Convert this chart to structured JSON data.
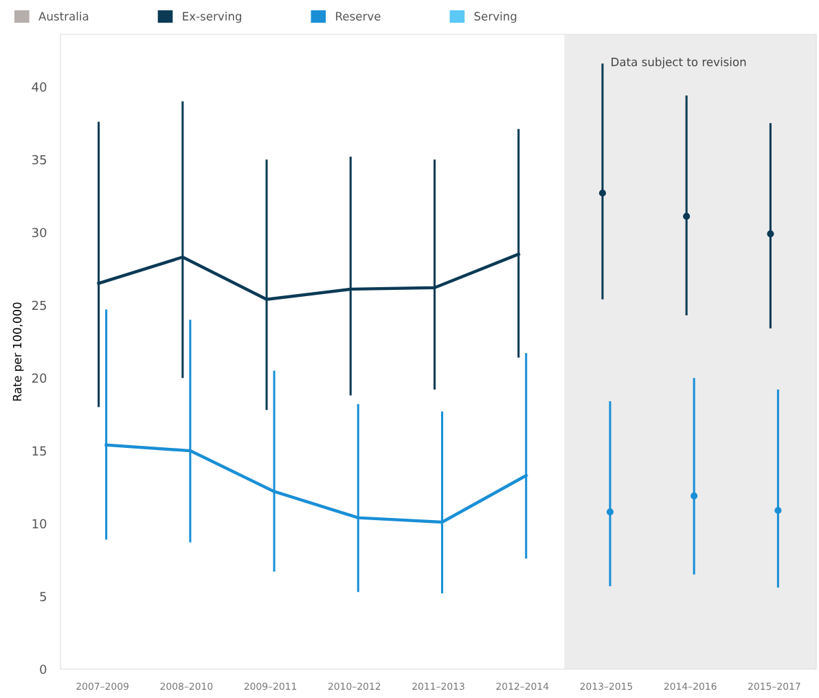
{
  "chart_data": {
    "type": "line",
    "ylabel": "Rate per 100,000",
    "categories": [
      "2007–2009",
      "2008–2010",
      "2009–2011",
      "2010–2012",
      "2011–2013",
      "2012–2014",
      "2013–2015",
      "2014–2016",
      "2015–2017"
    ],
    "series": [
      {
        "name": "Australia",
        "color": "#b5aeab",
        "values": [
          null,
          null,
          null,
          null,
          null,
          null,
          null,
          null,
          null
        ]
      },
      {
        "name": "Ex-serving",
        "color": "#0b3a55",
        "values": [
          26.5,
          28.3,
          25.4,
          26.1,
          26.2,
          28.5,
          null,
          null,
          null
        ],
        "errors": [
          [
            18.0,
            37.6
          ],
          [
            20.0,
            39.0
          ],
          [
            17.8,
            35.0
          ],
          [
            18.8,
            35.2
          ],
          [
            19.2,
            35.0
          ],
          [
            21.4,
            37.1
          ],
          null,
          null,
          null
        ]
      },
      {
        "color": "#0b3a55",
        "type": "scatter",
        "marker": "circle",
        "values": [
          null,
          null,
          null,
          null,
          null,
          null,
          32.7,
          31.1,
          29.9
        ],
        "errors": [
          null,
          null,
          null,
          null,
          null,
          null,
          [
            25.4,
            41.6
          ],
          [
            24.3,
            39.4
          ],
          [
            23.4,
            37.5
          ]
        ]
      },
      {
        "name": "Reserve",
        "color": "#1a8fd6",
        "values": [
          15.4,
          15.0,
          12.2,
          10.4,
          10.1,
          13.3,
          null,
          null,
          null
        ],
        "errors": [
          [
            8.9,
            24.7
          ],
          [
            8.7,
            24.0
          ],
          [
            6.7,
            20.5
          ],
          [
            5.3,
            18.2
          ],
          [
            5.2,
            17.7
          ],
          [
            7.6,
            21.7
          ],
          null,
          null,
          null
        ]
      },
      {
        "color": "#1a8fd6",
        "type": "scatter",
        "marker": "circle",
        "values": [
          null,
          null,
          null,
          null,
          null,
          null,
          10.8,
          11.9,
          10.9
        ],
        "errors": [
          null,
          null,
          null,
          null,
          null,
          null,
          [
            5.7,
            18.4
          ],
          [
            6.5,
            20.0
          ],
          [
            5.6,
            19.2
          ]
        ]
      },
      {
        "name": "Serving",
        "color": "#5bc8f5",
        "values": [
          null,
          null,
          null,
          null,
          null,
          null,
          null,
          null,
          null
        ]
      }
    ],
    "ylim": [
      0,
      43.6
    ],
    "yticks": [
      0,
      5,
      10,
      15,
      20,
      25,
      30,
      35,
      40
    ],
    "bands": [
      {
        "axis": "x",
        "from": "2013–2015",
        "to": "2015–2017",
        "label": "Data subject to revision",
        "color": "#ececec"
      }
    ],
    "grid": false,
    "legend": "top left"
  }
}
